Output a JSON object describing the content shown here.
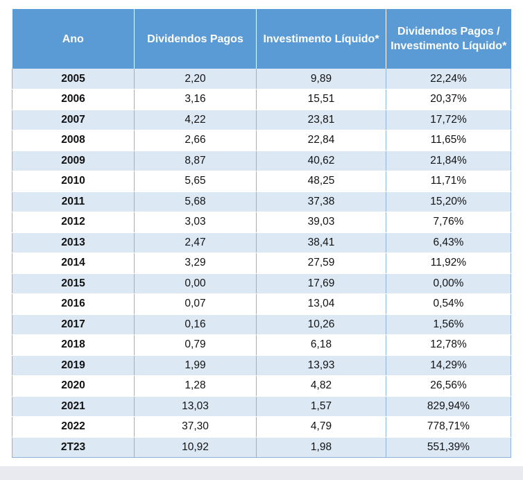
{
  "chart_data": {
    "type": "table",
    "columns": [
      "Ano",
      "Dividendos Pagos",
      "Investimento Líquido*",
      "Dividendos Pagos / Investimento Líquido*"
    ],
    "rows": [
      [
        "2005",
        "2,20",
        "9,89",
        "22,24%"
      ],
      [
        "2006",
        "3,16",
        "15,51",
        "20,37%"
      ],
      [
        "2007",
        "4,22",
        "23,81",
        "17,72%"
      ],
      [
        "2008",
        "2,66",
        "22,84",
        "11,65%"
      ],
      [
        "2009",
        "8,87",
        "40,62",
        "21,84%"
      ],
      [
        "2010",
        "5,65",
        "48,25",
        "11,71%"
      ],
      [
        "2011",
        "5,68",
        "37,38",
        "15,20%"
      ],
      [
        "2012",
        "3,03",
        "39,03",
        "7,76%"
      ],
      [
        "2013",
        "2,47",
        "38,41",
        "6,43%"
      ],
      [
        "2014",
        "3,29",
        "27,59",
        "11,92%"
      ],
      [
        "2015",
        "0,00",
        "17,69",
        "0,00%"
      ],
      [
        "2016",
        "0,07",
        "13,04",
        "0,54%"
      ],
      [
        "2017",
        "0,16",
        "10,26",
        "1,56%"
      ],
      [
        "2018",
        "0,79",
        "6,18",
        "12,78%"
      ],
      [
        "2019",
        "1,99",
        "13,93",
        "14,29%"
      ],
      [
        "2020",
        "1,28",
        "4,82",
        "26,56%"
      ],
      [
        "2021",
        "13,03",
        "1,57",
        "829,94%"
      ],
      [
        "2022",
        "37,30",
        "4,79",
        "778,71%"
      ],
      [
        "2T23",
        "10,92",
        "1,98",
        "551,39%"
      ]
    ]
  },
  "colors": {
    "header_bg": "#5b9bd5",
    "header_text": "#ffffff",
    "row_alt_bg": "#dde8f5",
    "row_bg": "#ffffff"
  }
}
